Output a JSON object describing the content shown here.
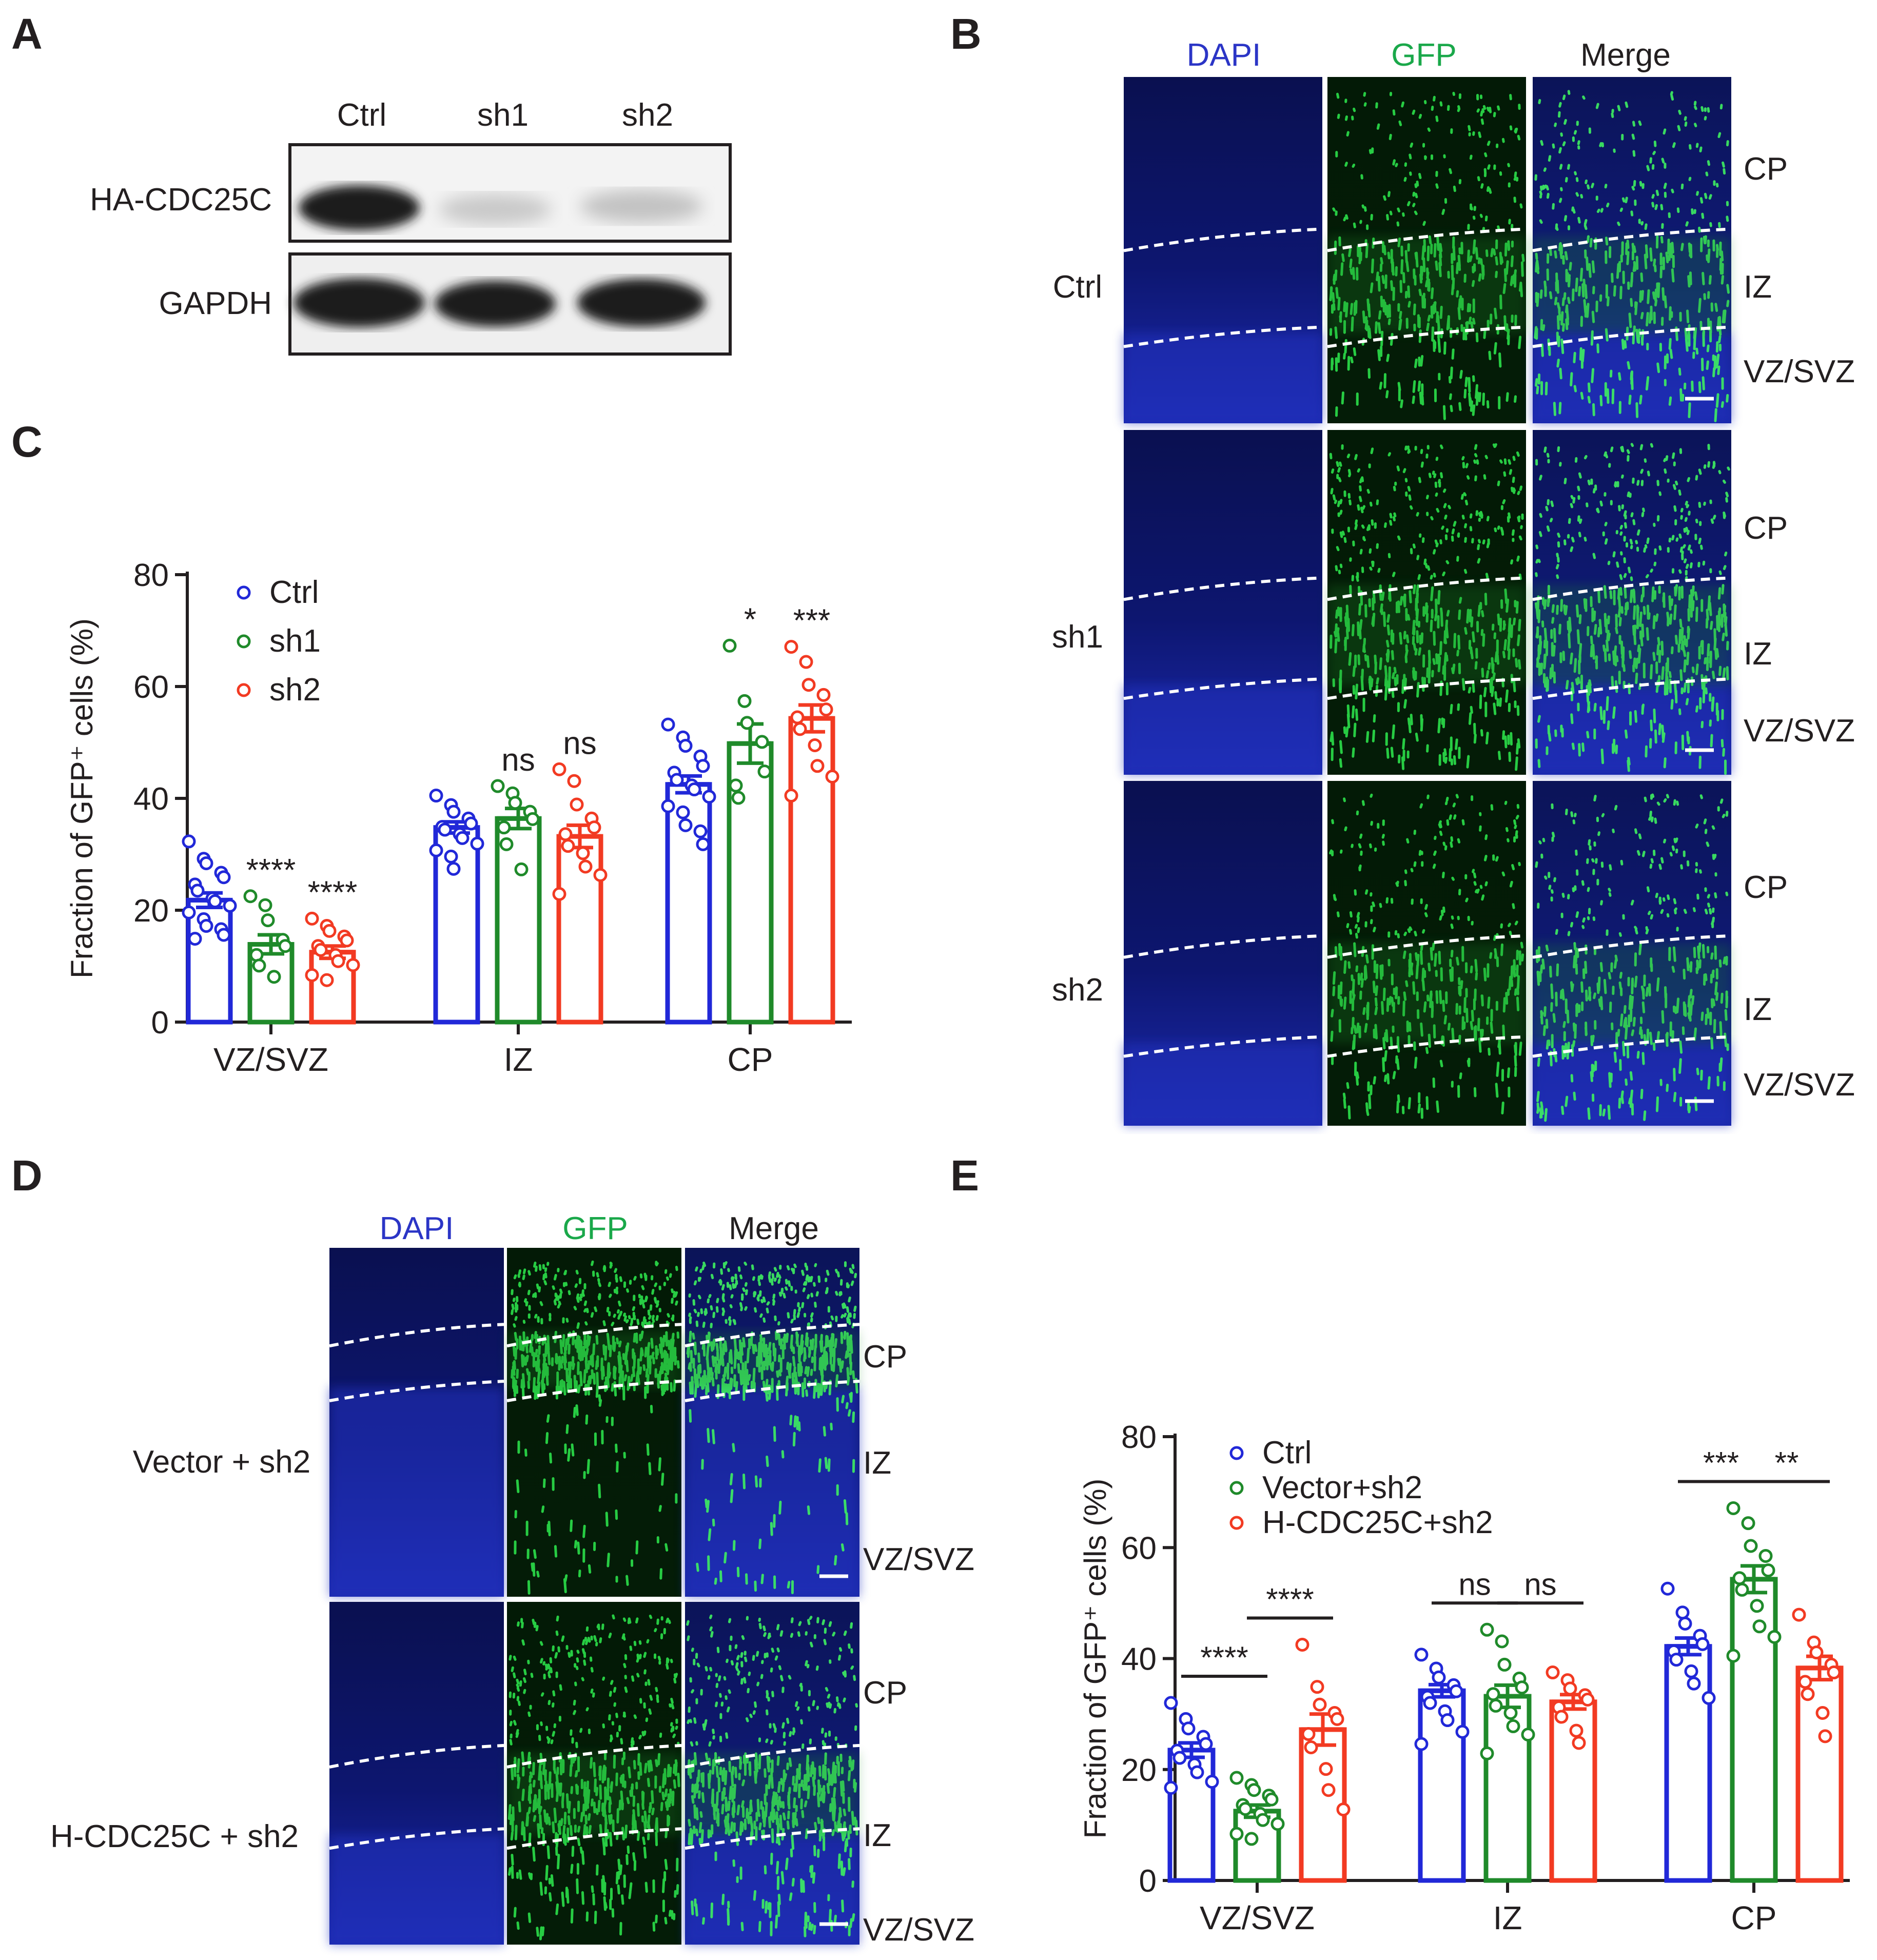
{
  "figure": {
    "panel_letters": [
      "A",
      "B",
      "C",
      "D",
      "E"
    ],
    "panel_a": {
      "lanes": [
        "Ctrl",
        "sh1",
        "sh2"
      ],
      "rows": [
        "HA-CDC25C",
        "GAPDH"
      ]
    },
    "panel_b": {
      "channels": [
        "DAPI",
        "GFP",
        "Merge"
      ],
      "conditions": [
        "Ctrl",
        "sh1",
        "sh2"
      ],
      "regions": [
        "CP",
        "IZ",
        "VZ/SVZ"
      ]
    },
    "panel_d": {
      "channels": [
        "DAPI",
        "GFP",
        "Merge"
      ],
      "conditions": [
        "Vector + sh2",
        "H-CDC25C + sh2"
      ],
      "regions": [
        "CP",
        "IZ",
        "VZ/SVZ"
      ]
    }
  },
  "colors": {
    "blue": "#2128d8",
    "green": "#1f8a2a",
    "red": "#f23a22",
    "dapi_label": "#2b35c6",
    "gfp_label": "#1aa84a"
  },
  "chart_data": [
    {
      "panel": "C",
      "type": "bar",
      "ylabel": "Fraction of GFP⁺ cells (%)",
      "ylim": [
        0,
        80
      ],
      "yticks": [
        0,
        20,
        40,
        60,
        80
      ],
      "categories": [
        "VZ/SVZ",
        "IZ",
        "CP"
      ],
      "legend_placement": "top-left",
      "series": [
        {
          "name": "Ctrl",
          "color": "#2128d8",
          "values": [
            21.8,
            34.8,
            42.5
          ],
          "sem": [
            1.3,
            1.0,
            1.5
          ],
          "points": [
            [
              32.3,
              29.2,
              28.4,
              26.7,
              25.9,
              24.6,
              23.5,
              22.1,
              21.6,
              20.8,
              19.6,
              18.4,
              17.2,
              16.6,
              15.6,
              14.9
            ],
            [
              40.5,
              38.8,
              37.6,
              36.4,
              35.5,
              34.9,
              34.4,
              33.6,
              32.9,
              31.9,
              30.7,
              29.6,
              27.4
            ],
            [
              53.2,
              50.9,
              49.4,
              47.5,
              45.8,
              44.6,
              43.3,
              42.3,
              41.6,
              40.3,
              38.6,
              37.5,
              35.2,
              34.1,
              31.8
            ]
          ]
        },
        {
          "name": "sh1",
          "color": "#1f8a2a",
          "values": [
            13.9,
            36.4,
            49.8
          ],
          "sem": [
            1.7,
            1.8,
            3.5
          ],
          "points": [
            [
              22.5,
              20.9,
              18.2,
              14.7,
              13.6,
              12.0,
              10.1,
              8.1
            ],
            [
              42.2,
              40.9,
              39.2,
              37.6,
              36.3,
              34.8,
              31.8,
              27.3
            ],
            [
              67.3,
              57.4,
              53.5,
              50.1,
              44.8,
              42.3,
              40.1
            ]
          ]
        },
        {
          "name": "sh2",
          "color": "#f23a22",
          "values": [
            12.5,
            33.2,
            54.3
          ],
          "sem": [
            1.1,
            2.0,
            2.4
          ],
          "points": [
            [
              18.5,
              17.2,
              16.3,
              15.3,
              14.6,
              13.6,
              12.9,
              12.0,
              10.9,
              10.2,
              8.4,
              7.5
            ],
            [
              45.2,
              43.1,
              38.9,
              36.4,
              34.8,
              33.6,
              31.5,
              30.2,
              27.8,
              26.3,
              22.9
            ],
            [
              67.1,
              64.4,
              60.3,
              58.5,
              55.9,
              54.5,
              52.4,
              49.5,
              45.8,
              43.9,
              40.5
            ]
          ]
        }
      ],
      "significance": [
        {
          "category": "VZ/SVZ",
          "series": "sh1",
          "label": "****"
        },
        {
          "category": "VZ/SVZ",
          "series": "sh2",
          "label": "****"
        },
        {
          "category": "IZ",
          "series": "sh1",
          "label": "ns"
        },
        {
          "category": "IZ",
          "series": "sh2",
          "label": "ns"
        },
        {
          "category": "CP",
          "series": "sh1",
          "label": "*"
        },
        {
          "category": "CP",
          "series": "sh2",
          "label": "***"
        }
      ]
    },
    {
      "panel": "E",
      "type": "bar",
      "ylabel": "Fraction of GFP⁺ cells (%)",
      "ylim": [
        0,
        80
      ],
      "yticks": [
        0,
        20,
        40,
        60,
        80
      ],
      "categories": [
        "VZ/SVZ",
        "IZ",
        "CP"
      ],
      "legend_placement": "top-left",
      "series": [
        {
          "name": "Ctrl",
          "color": "#2128d8",
          "values": [
            23.5,
            34.2,
            42.2
          ],
          "sem": [
            1.3,
            1.1,
            1.5
          ],
          "points": [
            [
              32.0,
              29.1,
              27.4,
              25.9,
              24.6,
              23.4,
              22.1,
              20.9,
              19.5,
              17.8,
              16.7
            ],
            [
              40.7,
              38.2,
              36.6,
              35.2,
              34.1,
              33.1,
              32.0,
              30.5,
              28.9,
              26.8,
              24.6
            ],
            [
              52.6,
              48.3,
              46.3,
              44.1,
              42.6,
              41.3,
              39.8,
              37.7,
              35.5,
              32.9
            ]
          ]
        },
        {
          "name": "Vector+sh2",
          "color": "#1f8a2a",
          "values": [
            12.5,
            33.2,
            54.3
          ],
          "sem": [
            1.1,
            2.0,
            2.4
          ],
          "points": [
            [
              18.5,
              17.2,
              16.3,
              15.3,
              14.6,
              13.6,
              12.9,
              12.0,
              10.9,
              10.2,
              8.4,
              7.5
            ],
            [
              45.2,
              43.1,
              38.9,
              36.4,
              34.8,
              33.6,
              31.5,
              30.2,
              27.8,
              26.3,
              22.9
            ],
            [
              67.1,
              64.4,
              60.3,
              58.5,
              55.9,
              54.5,
              52.4,
              49.5,
              45.8,
              43.9,
              40.5
            ]
          ]
        },
        {
          "name": "H-CDC25C+sh2",
          "color": "#f23a22",
          "values": [
            27.2,
            32.2,
            38.3
          ],
          "sem": [
            2.8,
            1.3,
            2.1
          ],
          "points": [
            [
              42.5,
              34.9,
              31.7,
              30.2,
              29.1,
              26.4,
              24.0,
              20.1,
              16.3,
              12.8
            ],
            [
              37.5,
              36.1,
              34.6,
              33.4,
              32.6,
              31.2,
              29.5,
              27.0,
              24.8
            ],
            [
              47.9,
              42.9,
              41.1,
              38.9,
              37.5,
              35.8,
              33.6,
              30.2,
              26.0
            ]
          ]
        }
      ],
      "brackets": [
        {
          "category": "VZ/SVZ",
          "from": 0,
          "to": 1,
          "label": "****"
        },
        {
          "category": "VZ/SVZ",
          "from": 1,
          "to": 2,
          "label": "****"
        },
        {
          "category": "IZ",
          "from": 0,
          "to": 1,
          "label": "ns"
        },
        {
          "category": "IZ",
          "from": 1,
          "to": 2,
          "label": "ns"
        },
        {
          "category": "CP",
          "from": 0,
          "to": 1,
          "label": "***"
        },
        {
          "category": "CP",
          "from": 1,
          "to": 2,
          "label": "**"
        }
      ]
    }
  ]
}
